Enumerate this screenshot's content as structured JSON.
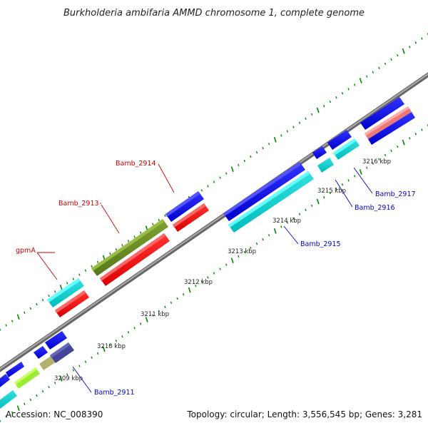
{
  "title": "Burkholderia ambifaria AMMD chromosome 1, complete genome",
  "accession": "Accession: NC_008390",
  "topology": "Topology: circular; Length: 3,556,545 bp; Genes: 3,281",
  "kbp_labels": [
    "3209 kbp",
    "3210 kbp",
    "3211 kbp",
    "3212 kbp",
    "3213 kbp",
    "3214 kbp",
    "3215 kbp",
    "3216 kbp"
  ],
  "gene_labels": {
    "gpmA": "gpmA",
    "b2913": "Bamb_2913",
    "b2914": "Bamb_2914",
    "b2915": "Bamb_2915",
    "b2916": "Bamb_2916",
    "b2917": "Bamb_2917",
    "b2911": "Bamb_2911"
  },
  "colors": {
    "upper_label": "#cc0000",
    "lower_label": "#0000cc",
    "tick": "#008800",
    "backbone": "#888888"
  }
}
